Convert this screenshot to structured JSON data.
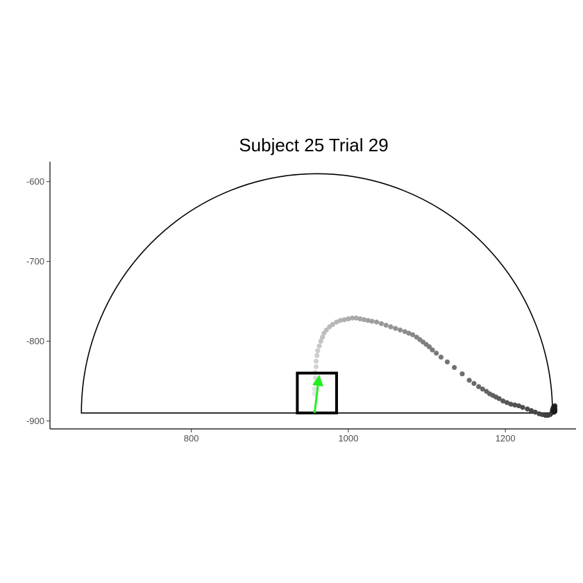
{
  "chart_data": {
    "type": "scatter",
    "title": "Subject  25  Trial  29",
    "xlabel": "",
    "ylabel": "",
    "xlim": [
      620,
      1290
    ],
    "ylim": [
      -910,
      -575
    ],
    "x_ticks": [
      800,
      1000,
      1200
    ],
    "x_tick_labels": [
      "800",
      "1000",
      "1200"
    ],
    "y_ticks": [
      -600,
      -700,
      -800,
      -900
    ],
    "y_tick_labels": [
      "-600",
      "-700",
      "-800",
      "-900"
    ],
    "grid": false,
    "legend": "none",
    "arena": {
      "center": [
        960,
        -890
      ],
      "radius": 300
    },
    "start_box": {
      "x_min": 935,
      "x_max": 985,
      "y_min": -890,
      "y_max": -840
    },
    "arrow": {
      "from": [
        957,
        -890
      ],
      "to": [
        963,
        -842
      ],
      "color": "#22ee22"
    },
    "point_color_range": [
      "#e6e6e6",
      "#1a1a1a"
    ],
    "series": [
      {
        "values": [
          [
            957,
            -866
          ],
          [
            957,
            -860
          ],
          [
            958,
            -853
          ],
          [
            958,
            -846
          ],
          [
            958,
            -839
          ],
          [
            959,
            -832
          ],
          [
            959,
            -825
          ],
          [
            960,
            -818
          ],
          [
            961,
            -812
          ],
          [
            963,
            -806
          ],
          [
            965,
            -800
          ],
          [
            967,
            -795
          ],
          [
            969,
            -790
          ],
          [
            972,
            -786
          ],
          [
            976,
            -782
          ],
          [
            980,
            -779
          ],
          [
            985,
            -776
          ],
          [
            990,
            -774
          ],
          [
            995,
            -773
          ],
          [
            1000,
            -772
          ],
          [
            1005,
            -771
          ],
          [
            1010,
            -771
          ],
          [
            1015,
            -772
          ],
          [
            1020,
            -773
          ],
          [
            1025,
            -774
          ],
          [
            1030,
            -775
          ],
          [
            1036,
            -776
          ],
          [
            1042,
            -778
          ],
          [
            1048,
            -780
          ],
          [
            1054,
            -782
          ],
          [
            1060,
            -784
          ],
          [
            1066,
            -786
          ],
          [
            1072,
            -788
          ],
          [
            1077,
            -790
          ],
          [
            1082,
            -792
          ],
          [
            1087,
            -795
          ],
          [
            1091,
            -798
          ],
          [
            1095,
            -801
          ],
          [
            1099,
            -804
          ],
          [
            1103,
            -807
          ],
          [
            1107,
            -811
          ],
          [
            1112,
            -815
          ],
          [
            1118,
            -820
          ],
          [
            1126,
            -826
          ],
          [
            1135,
            -833
          ],
          [
            1145,
            -841
          ],
          [
            1154,
            -849
          ],
          [
            1160,
            -853
          ],
          [
            1166,
            -857
          ],
          [
            1171,
            -860
          ],
          [
            1176,
            -863
          ],
          [
            1180,
            -866
          ],
          [
            1184,
            -868
          ],
          [
            1188,
            -870
          ],
          [
            1192,
            -872
          ],
          [
            1197,
            -875
          ],
          [
            1202,
            -877
          ],
          [
            1207,
            -879
          ],
          [
            1212,
            -880
          ],
          [
            1217,
            -881
          ],
          [
            1222,
            -883
          ],
          [
            1228,
            -885
          ],
          [
            1233,
            -887
          ],
          [
            1238,
            -889
          ],
          [
            1243,
            -891
          ],
          [
            1247,
            -892
          ],
          [
            1251,
            -893
          ],
          [
            1254,
            -893
          ],
          [
            1257,
            -892
          ],
          [
            1259,
            -890
          ],
          [
            1260,
            -888
          ],
          [
            1261,
            -886
          ],
          [
            1262,
            -884
          ],
          [
            1263,
            -882
          ],
          [
            1263,
            -881
          ],
          [
            1262,
            -882
          ],
          [
            1261,
            -883
          ],
          [
            1262,
            -885
          ],
          [
            1263,
            -887
          ],
          [
            1262,
            -889
          ],
          [
            1261,
            -888
          ],
          [
            1260,
            -886
          ],
          [
            1261,
            -884
          ],
          [
            1262,
            -883
          ],
          [
            1263,
            -885
          ],
          [
            1263,
            -888
          ]
        ]
      }
    ]
  }
}
